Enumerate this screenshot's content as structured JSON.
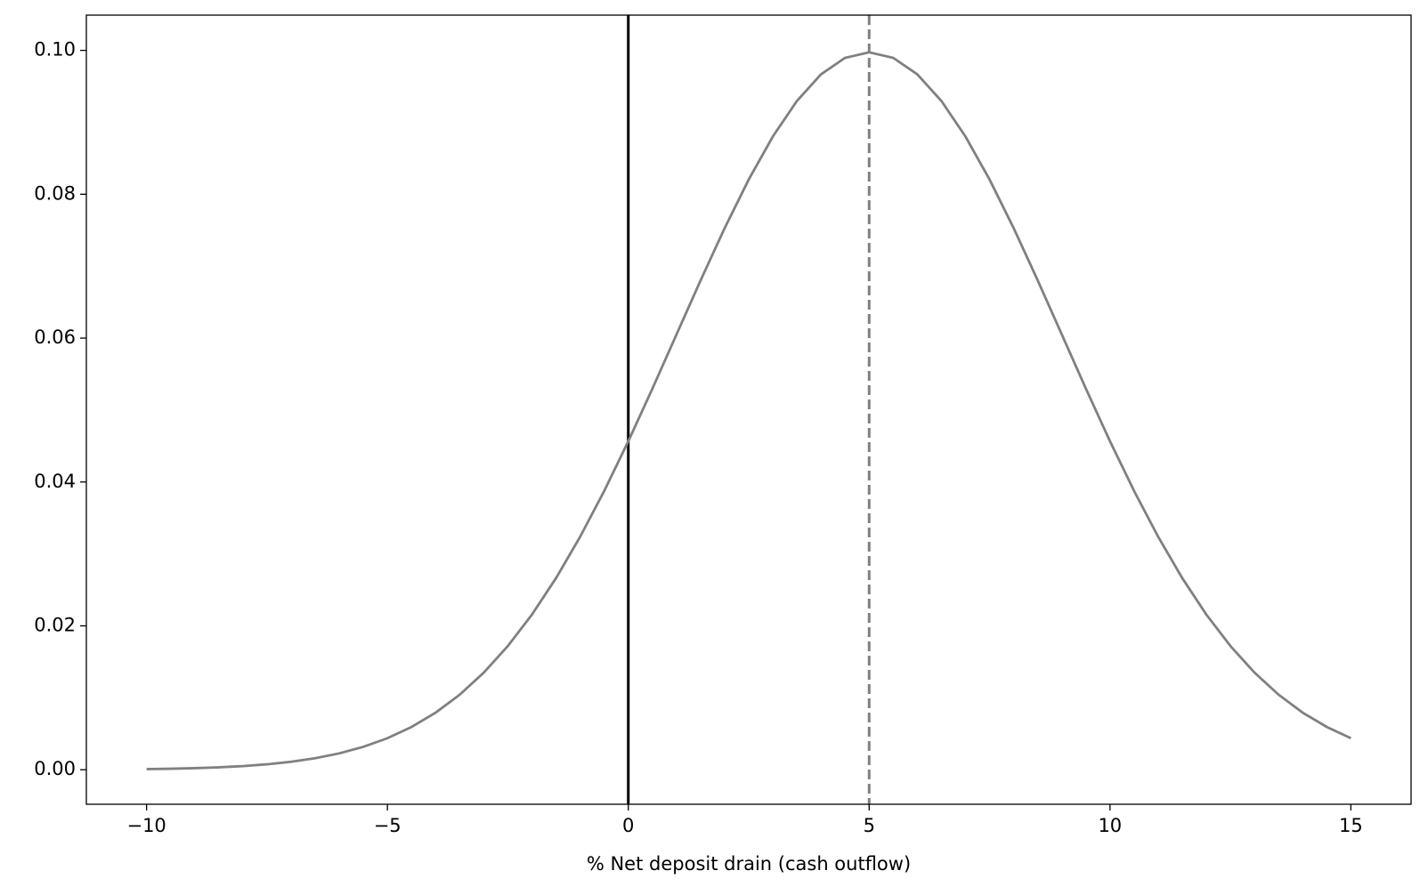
{
  "chart_data": {
    "type": "line",
    "xlabel": "% Net deposit drain (cash outflow)",
    "x": [
      -10,
      -9.5,
      -9,
      -8.5,
      -8,
      -7.5,
      -7,
      -6.5,
      -6,
      -5.5,
      -5,
      -4.5,
      -4,
      -3.5,
      -3,
      -2.5,
      -2,
      -1.5,
      -1,
      -0.5,
      0,
      0.5,
      1,
      1.5,
      2,
      2.5,
      3,
      3.5,
      4,
      4.5,
      5,
      5.5,
      6,
      6.5,
      7,
      7.5,
      8,
      8.5,
      9,
      9.5,
      10,
      10.5,
      11,
      11.5,
      12,
      12.5,
      13,
      13.5,
      14,
      14.5,
      15
    ],
    "series": [
      {
        "color": "#808080",
        "values": [
          8.82e-05,
          0.00014,
          0.000218,
          0.000335,
          0.000507,
          0.000755,
          0.001108,
          0.001599,
          0.002273,
          0.003181,
          0.004382,
          0.005943,
          0.007935,
          0.01043,
          0.013498,
          0.017196,
          0.021569,
          0.026635,
          0.032379,
          0.038753,
          0.045662,
          0.052969,
          0.060493,
          0.068013,
          0.075284,
          0.082041,
          0.088017,
          0.092965,
          0.096667,
          0.09896,
          0.099736,
          0.09896,
          0.096667,
          0.092965,
          0.088017,
          0.082041,
          0.075284,
          0.068013,
          0.060493,
          0.052969,
          0.045662,
          0.038753,
          0.032379,
          0.026635,
          0.021569,
          0.017196,
          0.013498,
          0.01043,
          0.007935,
          0.005943,
          0.004382
        ]
      }
    ],
    "vlines": [
      {
        "x": 0,
        "color": "#000000",
        "dashed": false
      },
      {
        "x": 5,
        "color": "#808080",
        "dashed": true
      }
    ],
    "xlim": [
      -11.25,
      16.25
    ],
    "ylim": [
      -0.0048,
      0.1049
    ],
    "xticks": [
      {
        "value": -10,
        "label": "−10"
      },
      {
        "value": -5,
        "label": "−5"
      },
      0,
      5,
      10,
      15
    ],
    "yticks": [
      {
        "value": 0,
        "label": "0.00"
      },
      {
        "value": 0.02,
        "label": "0.02"
      },
      {
        "value": 0.04,
        "label": "0.04"
      },
      {
        "value": 0.06,
        "label": "0.06"
      },
      {
        "value": 0.08,
        "label": "0.08"
      },
      {
        "value": 0.1,
        "label": "0.10"
      }
    ]
  }
}
